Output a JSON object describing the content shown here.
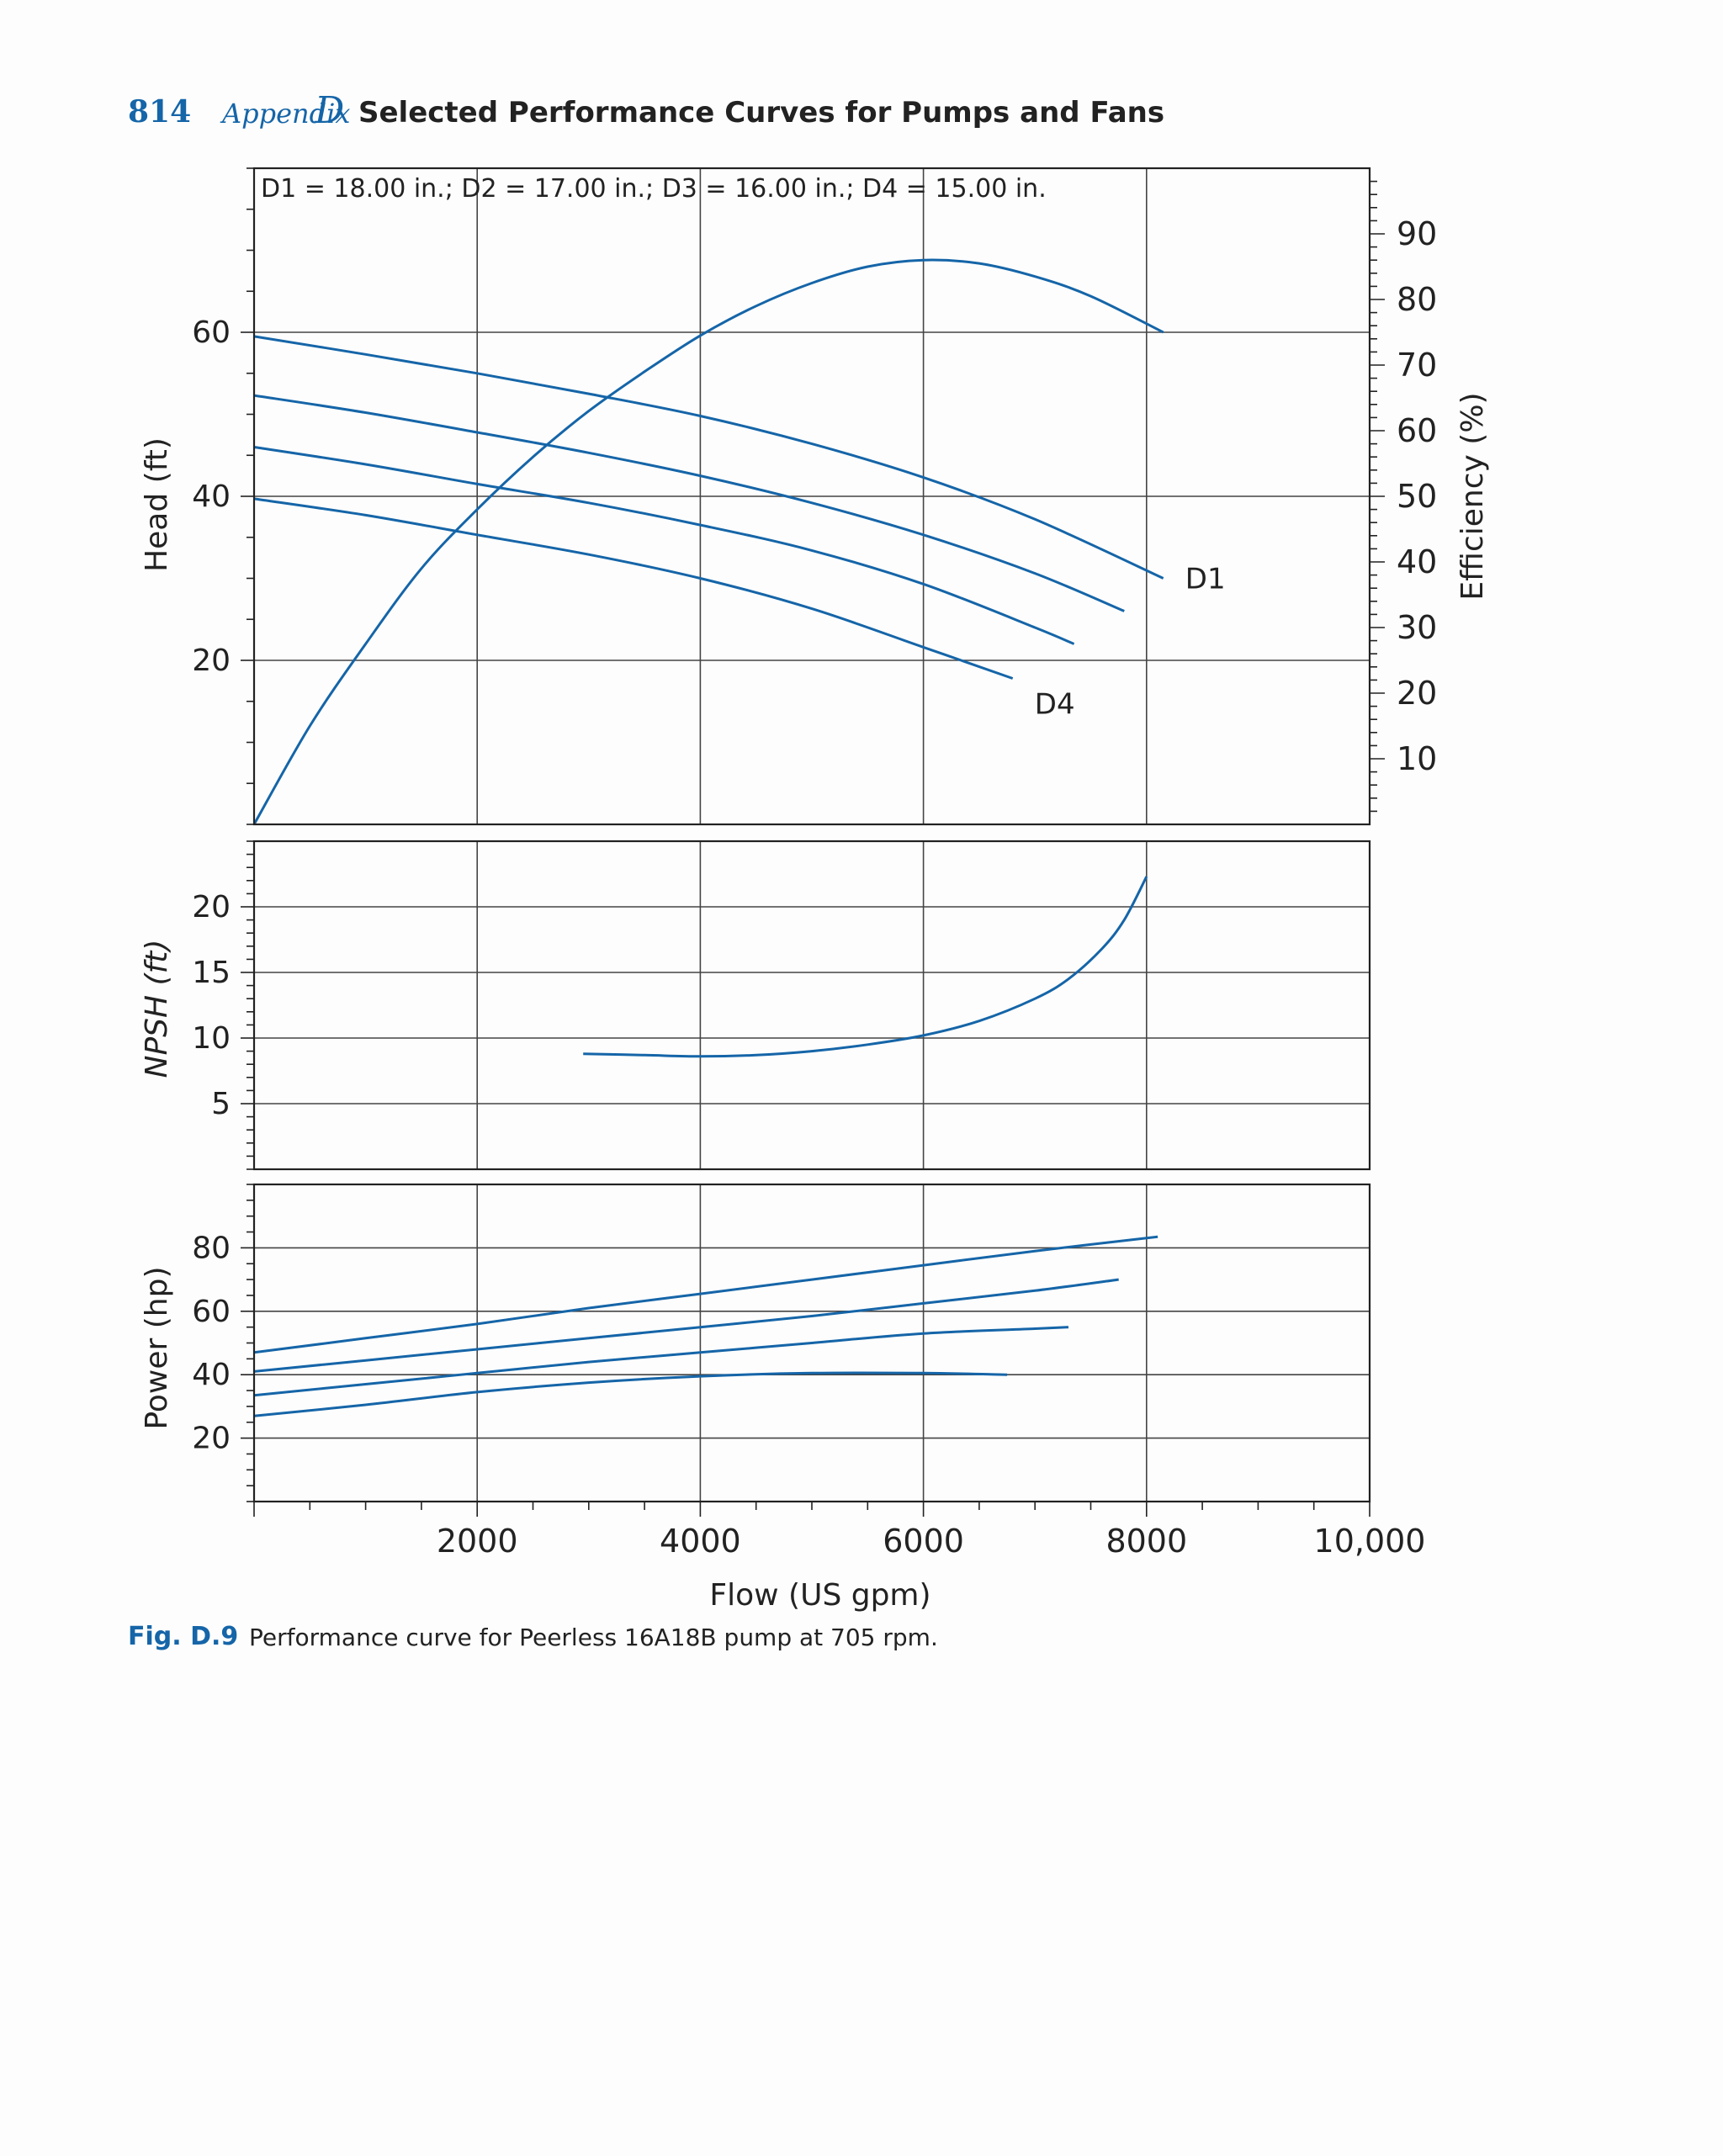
{
  "header": {
    "page_number": "814",
    "appendix_word": "Appendix",
    "appendix_letter": "D",
    "title": "Selected Performance Curves for Pumps and Fans"
  },
  "caption": {
    "label": "Fig. D.9",
    "text": "Performance curve for Peerless 16A18B pump at 705 rpm."
  },
  "colors": {
    "curve": "#1565a8",
    "grid": "#444444",
    "accent": "#1565a8"
  },
  "chart_data": [
    {
      "type": "line",
      "id": "head",
      "title": "D1 = 18.00 in.; D2 = 17.00 in.; D3 = 16.00 in.; D4 = 15.00 in.",
      "xlabel": "",
      "ylabel": "Head (ft)",
      "xlim": [
        0,
        10000
      ],
      "ylim": [
        0,
        80
      ],
      "yticks": [
        20,
        40,
        60
      ],
      "grid": true,
      "series": [
        {
          "name": "D1",
          "label": "D1",
          "x": [
            0,
            1000,
            2000,
            3000,
            4000,
            5000,
            6000,
            7000,
            8150
          ],
          "values": [
            59.5,
            57.3,
            55,
            52.5,
            49.8,
            46.4,
            42.3,
            37.2,
            30
          ]
        },
        {
          "name": "D2",
          "label": "",
          "x": [
            0,
            1000,
            2000,
            3000,
            4000,
            5000,
            6000,
            7000,
            7800
          ],
          "values": [
            52.3,
            50.2,
            47.8,
            45.3,
            42.5,
            39.2,
            35.3,
            30.6,
            26
          ]
        },
        {
          "name": "D3",
          "label": "",
          "x": [
            0,
            1000,
            2000,
            3000,
            4000,
            5000,
            6000,
            7000,
            7350
          ],
          "values": [
            46,
            43.9,
            41.5,
            39.2,
            36.5,
            33.4,
            29.3,
            24,
            22
          ]
        },
        {
          "name": "D4",
          "label": "D4",
          "x": [
            0,
            1000,
            2000,
            3000,
            4000,
            5000,
            6000,
            6800
          ],
          "values": [
            39.7,
            37.7,
            35.3,
            32.9,
            30,
            26.3,
            21.6,
            17.8
          ]
        }
      ],
      "labels": {
        "d1": "D1",
        "d4": "D4"
      }
    },
    {
      "type": "line",
      "id": "efficiency",
      "ylabel": "Efficiency (%)",
      "axis": "right",
      "ylim": [
        0,
        100
      ],
      "yticks": [
        10,
        20,
        30,
        40,
        50,
        60,
        70,
        80,
        90
      ],
      "series": [
        {
          "name": "Efficiency",
          "x": [
            0,
            500,
            1000,
            1500,
            2000,
            2500,
            3000,
            3500,
            4000,
            4500,
            5000,
            5500,
            6000,
            6500,
            7000,
            7500,
            8150
          ],
          "values": [
            0,
            15,
            27.5,
            39,
            48,
            56,
            63,
            69,
            74.5,
            79,
            82.5,
            85,
            86,
            85.5,
            83.5,
            80.5,
            75
          ]
        }
      ]
    },
    {
      "type": "line",
      "id": "npsh",
      "ylabel": "NPSH (ft)",
      "ylim": [
        0,
        25
      ],
      "yticks": [
        5,
        10,
        15,
        20
      ],
      "grid": true,
      "series": [
        {
          "name": "NPSH",
          "x": [
            2950,
            3500,
            4000,
            4500,
            5000,
            5500,
            6000,
            6500,
            7000,
            7300,
            7600,
            7800,
            8000
          ],
          "values": [
            8.8,
            8.7,
            8.6,
            8.7,
            9,
            9.5,
            10.2,
            11.3,
            13,
            14.5,
            16.8,
            19,
            22.3
          ]
        }
      ]
    },
    {
      "type": "line",
      "id": "power",
      "xlabel": "Flow (US gpm)",
      "ylabel": "Power (hp)",
      "xlim": [
        0,
        10000
      ],
      "ylim": [
        0,
        100
      ],
      "xticks": [
        2000,
        4000,
        6000,
        8000,
        10000
      ],
      "xtick_labels": [
        "2000",
        "4000",
        "6000",
        "8000",
        "10,000"
      ],
      "yticks": [
        20,
        40,
        60,
        80
      ],
      "grid": true,
      "series": [
        {
          "name": "D1",
          "x": [
            0,
            1000,
            2000,
            3000,
            4000,
            5000,
            6000,
            7000,
            8100
          ],
          "values": [
            47,
            51.5,
            56,
            61,
            65.5,
            70,
            74.5,
            79,
            83.5
          ]
        },
        {
          "name": "D2",
          "x": [
            0,
            1000,
            2000,
            3000,
            4000,
            5000,
            6000,
            7000,
            7750
          ],
          "values": [
            41,
            44.5,
            48,
            51.5,
            55,
            58.5,
            62.5,
            66.5,
            70
          ]
        },
        {
          "name": "D3",
          "x": [
            0,
            1000,
            2000,
            3000,
            4000,
            5000,
            6000,
            7000,
            7300
          ],
          "values": [
            33.5,
            37,
            40.5,
            44,
            47,
            50,
            53,
            54.5,
            55
          ]
        },
        {
          "name": "D4",
          "x": [
            0,
            1000,
            2000,
            3000,
            4000,
            5000,
            6000,
            6750
          ],
          "values": [
            27,
            30.5,
            34.5,
            37.5,
            39.5,
            40.5,
            40.5,
            40
          ]
        }
      ]
    }
  ]
}
